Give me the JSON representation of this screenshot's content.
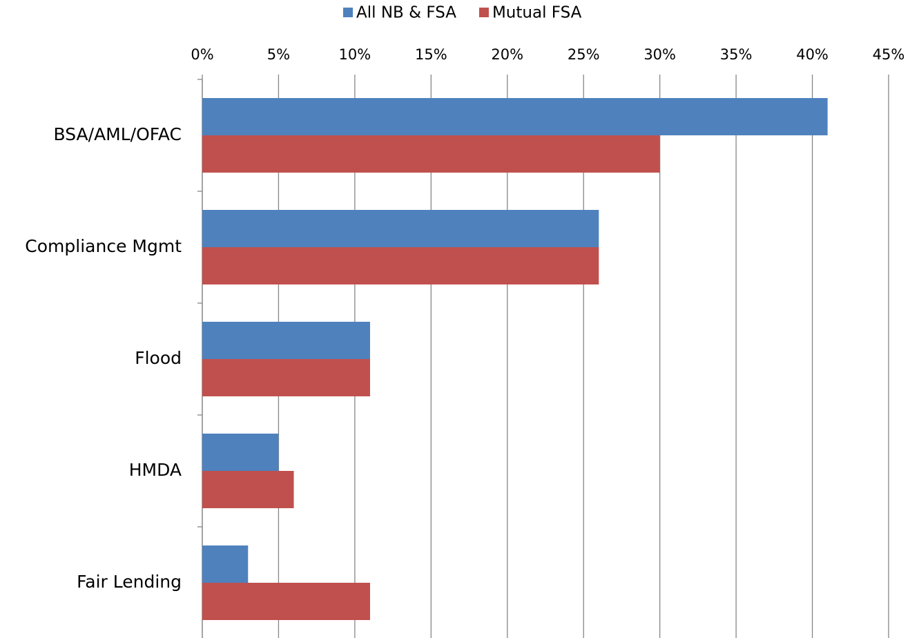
{
  "chart_data": {
    "type": "hbar",
    "categories": [
      "BSA/AML/OFAC",
      "Compliance Mgmt",
      "Flood",
      "HMDA",
      "Fair Lending"
    ],
    "series": [
      {
        "name": "All NB & FSA",
        "color": "#4f81bd",
        "values": [
          41,
          26,
          11,
          5,
          3
        ]
      },
      {
        "name": "Mutual FSA",
        "color": "#c0504d",
        "values": [
          30,
          26,
          11,
          6,
          11
        ]
      }
    ],
    "xlim": [
      0,
      45
    ],
    "xticks": [
      {
        "value": 0,
        "label": "0%"
      },
      {
        "value": 5,
        "label": "5%"
      },
      {
        "value": 10,
        "label": "10%"
      },
      {
        "value": 15,
        "label": "15%"
      },
      {
        "value": 20,
        "label": "20%"
      },
      {
        "value": 25,
        "label": "25%"
      },
      {
        "value": 30,
        "label": "30%"
      },
      {
        "value": 35,
        "label": "35%"
      },
      {
        "value": 40,
        "label": "40%"
      },
      {
        "value": 45,
        "label": "45%"
      }
    ],
    "grid": true,
    "legend": "top"
  }
}
